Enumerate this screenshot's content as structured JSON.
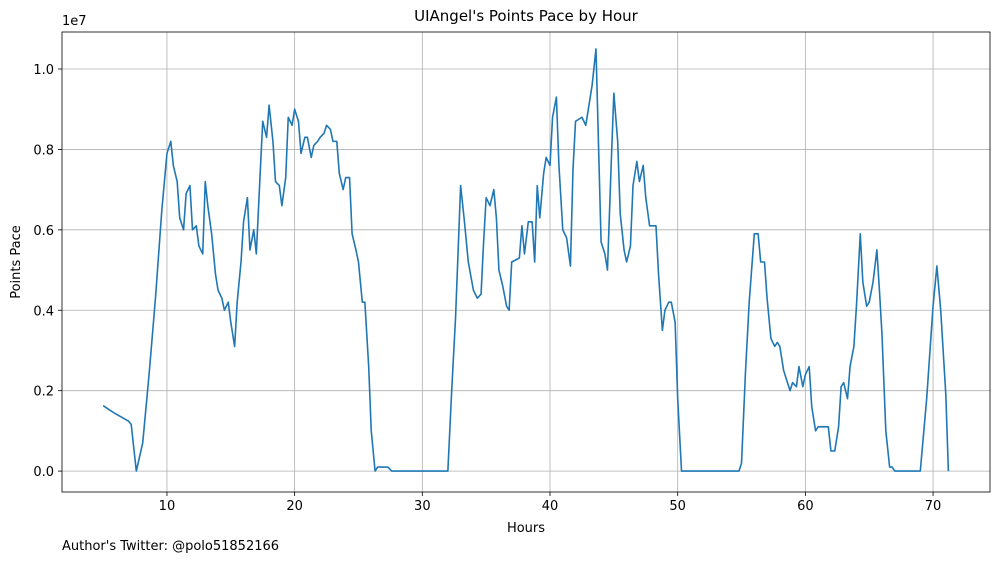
{
  "chart_data": {
    "type": "line",
    "title": "UIAngel's Points Pace by Hour",
    "x_label": "Hours",
    "y_label": "Points Pace",
    "y_offset_label": "1e7",
    "footnote": "Author's Twitter: @polo51852166",
    "grid": true,
    "xlim": [
      1.78,
      74.46
    ],
    "ylim": [
      -0.052,
      1.092
    ],
    "xticks": [
      10,
      20,
      30,
      40,
      50,
      60,
      70
    ],
    "yticks": [
      {
        "value": 0,
        "label": "0.0"
      },
      0.2,
      0.4,
      0.6,
      0.8,
      {
        "value": 1,
        "label": "1.0"
      }
    ],
    "x": [
      5.0,
      5.5,
      6.0,
      6.5,
      7.0,
      7.2,
      7.6,
      8.1,
      8.6,
      9.1,
      9.6,
      10.0,
      10.3,
      10.5,
      10.8,
      11.0,
      11.3,
      11.5,
      11.8,
      12.0,
      12.3,
      12.5,
      12.8,
      13.0,
      13.2,
      13.5,
      13.8,
      14.0,
      14.3,
      14.5,
      14.8,
      15.0,
      15.3,
      15.5,
      15.8,
      16.0,
      16.3,
      16.5,
      16.8,
      17.0,
      17.3,
      17.5,
      17.8,
      18.0,
      18.3,
      18.5,
      18.8,
      19.0,
      19.3,
      19.5,
      19.8,
      20.0,
      20.3,
      20.5,
      20.8,
      21.0,
      21.3,
      21.5,
      21.8,
      22.0,
      22.3,
      22.5,
      22.8,
      23.0,
      23.3,
      23.5,
      23.8,
      24.0,
      24.3,
      24.5,
      24.8,
      25.0,
      25.3,
      25.5,
      25.8,
      26.0,
      26.3,
      26.5,
      27.0,
      27.3,
      27.6,
      28.0,
      30.0,
      32.0,
      32.3,
      32.6,
      33.0,
      33.3,
      33.6,
      34.0,
      34.3,
      34.6,
      34.8,
      35.0,
      35.3,
      35.6,
      35.8,
      36.0,
      36.3,
      36.6,
      36.8,
      37.0,
      37.6,
      37.8,
      38.0,
      38.3,
      38.6,
      38.8,
      39.0,
      39.2,
      39.5,
      39.7,
      40.0,
      40.2,
      40.5,
      40.7,
      41.0,
      41.3,
      41.6,
      41.8,
      42.0,
      42.5,
      42.8,
      43.0,
      43.3,
      43.6,
      44.0,
      44.3,
      44.5,
      44.8,
      45.0,
      45.3,
      45.5,
      45.8,
      46.0,
      46.3,
      46.5,
      46.8,
      47.0,
      47.3,
      47.5,
      47.8,
      48.0,
      48.3,
      48.5,
      48.8,
      49.0,
      49.3,
      49.5,
      49.8,
      50.0,
      50.3,
      51.0,
      53.0,
      54.8,
      55.0,
      55.3,
      55.6,
      56.0,
      56.3,
      56.5,
      56.8,
      57.0,
      57.3,
      57.6,
      57.8,
      58.0,
      58.3,
      58.6,
      58.8,
      59.0,
      59.3,
      59.5,
      59.8,
      60.0,
      60.3,
      60.5,
      60.8,
      61.0,
      61.5,
      61.8,
      62.0,
      62.3,
      62.6,
      62.8,
      63.0,
      63.3,
      63.5,
      63.8,
      64.0,
      64.3,
      64.5,
      64.8,
      65.0,
      65.3,
      65.6,
      65.8,
      66.0,
      66.3,
      66.6,
      66.8,
      67.0,
      68.0,
      69.0,
      69.5,
      70.0,
      70.3,
      70.6,
      71.0,
      71.2
    ],
    "series": [
      {
        "name": "Points Pace",
        "color": "#1f77b4",
        "values": [
          0.163,
          0.152,
          0.142,
          0.133,
          0.124,
          0.116,
          0.0,
          0.07,
          0.24,
          0.43,
          0.65,
          0.79,
          0.82,
          0.76,
          0.72,
          0.63,
          0.6,
          0.69,
          0.71,
          0.6,
          0.61,
          0.56,
          0.54,
          0.72,
          0.66,
          0.59,
          0.49,
          0.45,
          0.43,
          0.4,
          0.42,
          0.37,
          0.31,
          0.42,
          0.52,
          0.62,
          0.68,
          0.55,
          0.6,
          0.54,
          0.74,
          0.87,
          0.83,
          0.91,
          0.82,
          0.72,
          0.71,
          0.66,
          0.73,
          0.88,
          0.86,
          0.9,
          0.87,
          0.79,
          0.83,
          0.83,
          0.78,
          0.81,
          0.82,
          0.83,
          0.84,
          0.86,
          0.85,
          0.82,
          0.82,
          0.74,
          0.7,
          0.73,
          0.73,
          0.59,
          0.55,
          0.52,
          0.42,
          0.42,
          0.26,
          0.1,
          0.0,
          0.01,
          0.01,
          0.01,
          0.0,
          0.0,
          0.0,
          0.0,
          0.2,
          0.38,
          0.71,
          0.62,
          0.52,
          0.45,
          0.43,
          0.44,
          0.57,
          0.68,
          0.66,
          0.7,
          0.63,
          0.5,
          0.46,
          0.41,
          0.4,
          0.52,
          0.53,
          0.61,
          0.54,
          0.62,
          0.62,
          0.52,
          0.71,
          0.63,
          0.74,
          0.78,
          0.76,
          0.88,
          0.93,
          0.76,
          0.6,
          0.58,
          0.51,
          0.75,
          0.87,
          0.88,
          0.86,
          0.9,
          0.96,
          1.05,
          0.57,
          0.54,
          0.5,
          0.77,
          0.94,
          0.82,
          0.64,
          0.55,
          0.52,
          0.56,
          0.71,
          0.77,
          0.72,
          0.76,
          0.68,
          0.61,
          0.61,
          0.61,
          0.49,
          0.35,
          0.4,
          0.42,
          0.42,
          0.37,
          0.18,
          0.0,
          0.0,
          0.0,
          0.0,
          0.02,
          0.24,
          0.42,
          0.59,
          0.59,
          0.52,
          0.52,
          0.43,
          0.33,
          0.31,
          0.32,
          0.31,
          0.25,
          0.22,
          0.2,
          0.22,
          0.21,
          0.26,
          0.21,
          0.24,
          0.26,
          0.16,
          0.1,
          0.11,
          0.11,
          0.11,
          0.05,
          0.05,
          0.11,
          0.21,
          0.22,
          0.18,
          0.26,
          0.31,
          0.41,
          0.59,
          0.47,
          0.41,
          0.42,
          0.47,
          0.55,
          0.45,
          0.34,
          0.1,
          0.01,
          0.01,
          0.0,
          0.0,
          0.0,
          0.18,
          0.41,
          0.51,
          0.4,
          0.19,
          0.0
        ]
      }
    ]
  }
}
